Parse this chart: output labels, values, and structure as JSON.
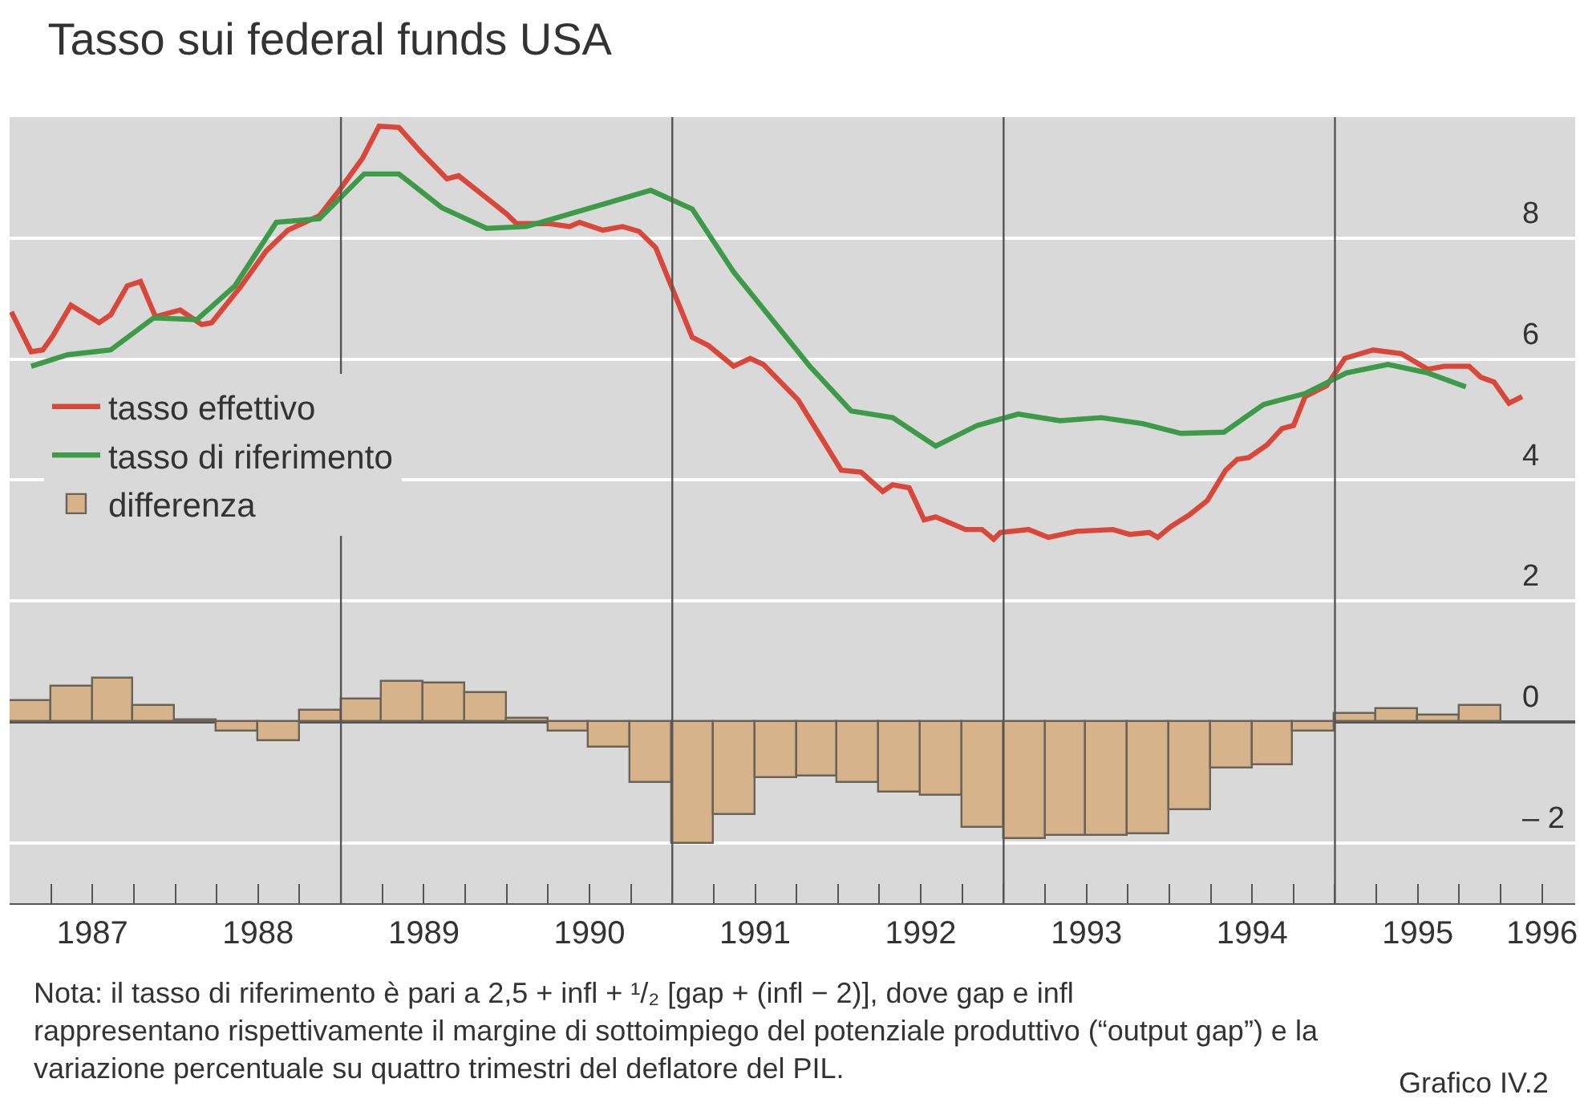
{
  "chart_data": {
    "type": "line",
    "title": "Tasso sui federal funds USA",
    "xlim": [
      1987,
      1996.45
    ],
    "xticks": [
      {
        "value": 1987.25,
        "label": null
      },
      {
        "value": 1987.5,
        "label": "1987"
      },
      {
        "value": 1987.75,
        "label": null
      },
      {
        "value": 1988,
        "label": null
      },
      {
        "value": 1988.25,
        "label": null
      },
      {
        "value": 1988.5,
        "label": "1988"
      },
      {
        "value": 1988.75,
        "label": null
      },
      {
        "value": 1989,
        "label": null
      },
      {
        "value": 1989.25,
        "label": null
      },
      {
        "value": 1989.5,
        "label": "1989"
      },
      {
        "value": 1989.75,
        "label": null
      },
      {
        "value": 1990,
        "label": null
      },
      {
        "value": 1990.25,
        "label": null
      },
      {
        "value": 1990.5,
        "label": "1990"
      },
      {
        "value": 1990.75,
        "label": null
      },
      {
        "value": 1991,
        "label": null
      },
      {
        "value": 1991.25,
        "label": null
      },
      {
        "value": 1991.5,
        "label": "1991"
      },
      {
        "value": 1991.75,
        "label": null
      },
      {
        "value": 1992,
        "label": null
      },
      {
        "value": 1992.25,
        "label": null
      },
      {
        "value": 1992.5,
        "label": "1992"
      },
      {
        "value": 1992.75,
        "label": null
      },
      {
        "value": 1993,
        "label": null
      },
      {
        "value": 1993.25,
        "label": null
      },
      {
        "value": 1993.5,
        "label": "1993"
      },
      {
        "value": 1993.75,
        "label": null
      },
      {
        "value": 1994,
        "label": null
      },
      {
        "value": 1994.25,
        "label": null
      },
      {
        "value": 1994.5,
        "label": "1994"
      },
      {
        "value": 1994.75,
        "label": null
      },
      {
        "value": 1995,
        "label": null
      },
      {
        "value": 1995.25,
        "label": null
      },
      {
        "value": 1995.5,
        "label": "1995"
      },
      {
        "value": 1995.75,
        "label": null
      },
      {
        "value": 1996,
        "label": null
      },
      {
        "value": 1996.25,
        "label": "1996"
      }
    ],
    "ylim": [
      -3,
      10
    ],
    "yticks": [
      {
        "value": -2,
        "label": "– 2"
      },
      0,
      2,
      4,
      6,
      8
    ],
    "grid": "y",
    "legend": "left",
    "ref_lines": [
      {
        "axis": "x",
        "value": 1989,
        "color": "#555555"
      },
      {
        "axis": "x",
        "value": 1991,
        "color": "#555555"
      },
      {
        "axis": "x",
        "value": 1993,
        "color": "#555555"
      },
      {
        "axis": "x",
        "value": 1995,
        "color": "#555555"
      }
    ],
    "series": [
      {
        "name": "tasso effettivo",
        "color": "#d9473b",
        "x": [
          1987.01,
          1987.13,
          1987.2,
          1987.26,
          1987.37,
          1987.54,
          1987.61,
          1987.71,
          1987.79,
          1987.88,
          1988.03,
          1988.16,
          1988.22,
          1988.39,
          1988.55,
          1988.68,
          1988.87,
          1988.99,
          1989.13,
          1989.23,
          1989.35,
          1989.48,
          1989.64,
          1989.71,
          1989.83,
          1990.0,
          1990.06,
          1990.25,
          1990.38,
          1990.44,
          1990.58,
          1990.7,
          1990.8,
          1990.9,
          1991.01,
          1991.12,
          1991.22,
          1991.37,
          1991.47,
          1991.55,
          1991.76,
          1992.02,
          1992.14,
          1992.27,
          1992.33,
          1992.43,
          1992.52,
          1992.59,
          1992.77,
          1992.87,
          1992.94,
          1992.98,
          1993.15,
          1993.27,
          1993.44,
          1993.66,
          1993.76,
          1993.88,
          1993.93,
          1994.01,
          1994.12,
          1994.23,
          1994.34,
          1994.41,
          1994.48,
          1994.59,
          1994.68,
          1994.75,
          1994.82,
          1994.95,
          1995.06,
          1995.23,
          1995.4,
          1995.56,
          1995.66,
          1995.81,
          1995.88,
          1995.96,
          1996.05,
          1996.13
        ],
        "values": [
          6.78,
          6.12,
          6.15,
          6.38,
          6.89,
          6.6,
          6.73,
          7.21,
          7.28,
          6.7,
          6.81,
          6.57,
          6.6,
          7.18,
          7.79,
          8.13,
          8.37,
          8.79,
          9.32,
          9.85,
          9.83,
          9.43,
          8.98,
          9.03,
          8.77,
          8.4,
          8.24,
          8.24,
          8.19,
          8.26,
          8.13,
          8.19,
          8.11,
          7.84,
          7.1,
          6.36,
          6.22,
          5.88,
          6.01,
          5.91,
          5.32,
          4.16,
          4.13,
          3.81,
          3.92,
          3.87,
          3.34,
          3.39,
          3.18,
          3.18,
          3.02,
          3.13,
          3.18,
          3.05,
          3.15,
          3.18,
          3.1,
          3.13,
          3.05,
          3.23,
          3.42,
          3.66,
          4.16,
          4.34,
          4.37,
          4.58,
          4.85,
          4.9,
          5.38,
          5.56,
          6.01,
          6.15,
          6.09,
          5.83,
          5.88,
          5.88,
          5.7,
          5.62,
          5.27,
          5.38
        ]
      },
      {
        "name": "tasso di riferimento",
        "color": "#3d9a48",
        "x": [
          1987.13,
          1987.35,
          1987.61,
          1987.87,
          1988.13,
          1988.36,
          1988.61,
          1988.87,
          1989.14,
          1989.35,
          1989.61,
          1989.88,
          1990.12,
          1990.87,
          1991.12,
          1991.37,
          1991.83,
          1992.08,
          1992.33,
          1992.59,
          1992.84,
          1993.09,
          1993.34,
          1993.59,
          1993.84,
          1994.07,
          1994.33,
          1994.57,
          1994.82,
          1995.07,
          1995.32,
          1995.56,
          1995.79
        ],
        "values": [
          5.88,
          6.07,
          6.15,
          6.68,
          6.65,
          7.21,
          8.26,
          8.32,
          9.06,
          9.06,
          8.5,
          8.16,
          8.19,
          8.79,
          8.48,
          7.44,
          5.88,
          5.14,
          5.03,
          4.56,
          4.9,
          5.09,
          4.98,
          5.03,
          4.93,
          4.77,
          4.79,
          5.25,
          5.43,
          5.77,
          5.91,
          5.77,
          5.54
        ]
      },
      {
        "name": "differenza",
        "type": "bar",
        "color": "#d6b38a",
        "x": [
          1987.125,
          1987.375,
          1987.625,
          1987.875,
          1988.125,
          1988.375,
          1988.625,
          1988.875,
          1989.125,
          1989.375,
          1989.625,
          1989.875,
          1990.125,
          1990.375,
          1990.625,
          1990.875,
          1991.125,
          1991.375,
          1991.625,
          1991.875,
          1992.125,
          1992.375,
          1992.625,
          1992.875,
          1993.125,
          1993.375,
          1993.625,
          1993.875,
          1994.125,
          1994.375,
          1994.625,
          1994.875,
          1995.125,
          1995.375,
          1995.625,
          1995.875
        ],
        "values": [
          0.34,
          0.59,
          0.72,
          0.27,
          0.03,
          -0.16,
          -0.31,
          0.19,
          0.38,
          0.67,
          0.63,
          0.48,
          0.06,
          -0.16,
          -0.42,
          -1.0,
          -2.03,
          -1.53,
          -0.94,
          -0.9,
          -1.01,
          -1.18,
          -1.23,
          -1.74,
          -1.93,
          -1.89,
          -1.89,
          -1.85,
          -1.47,
          -0.77,
          -0.71,
          -0.16,
          0.14,
          0.21,
          0.11,
          0.27
        ]
      }
    ],
    "annotations": [
      "Nota: il tasso di riferimento è pari a 2,5 + infl + ¹/₂ [gap + (infl − 2)], dove gap e infl rappresentano rispettivamente il margine di sottoimpiego del potenziale produttivo (“output gap”) e la variazione percentuale su quattro trimestri del deflatore del PIL.",
      "Grafico IV.2"
    ]
  }
}
